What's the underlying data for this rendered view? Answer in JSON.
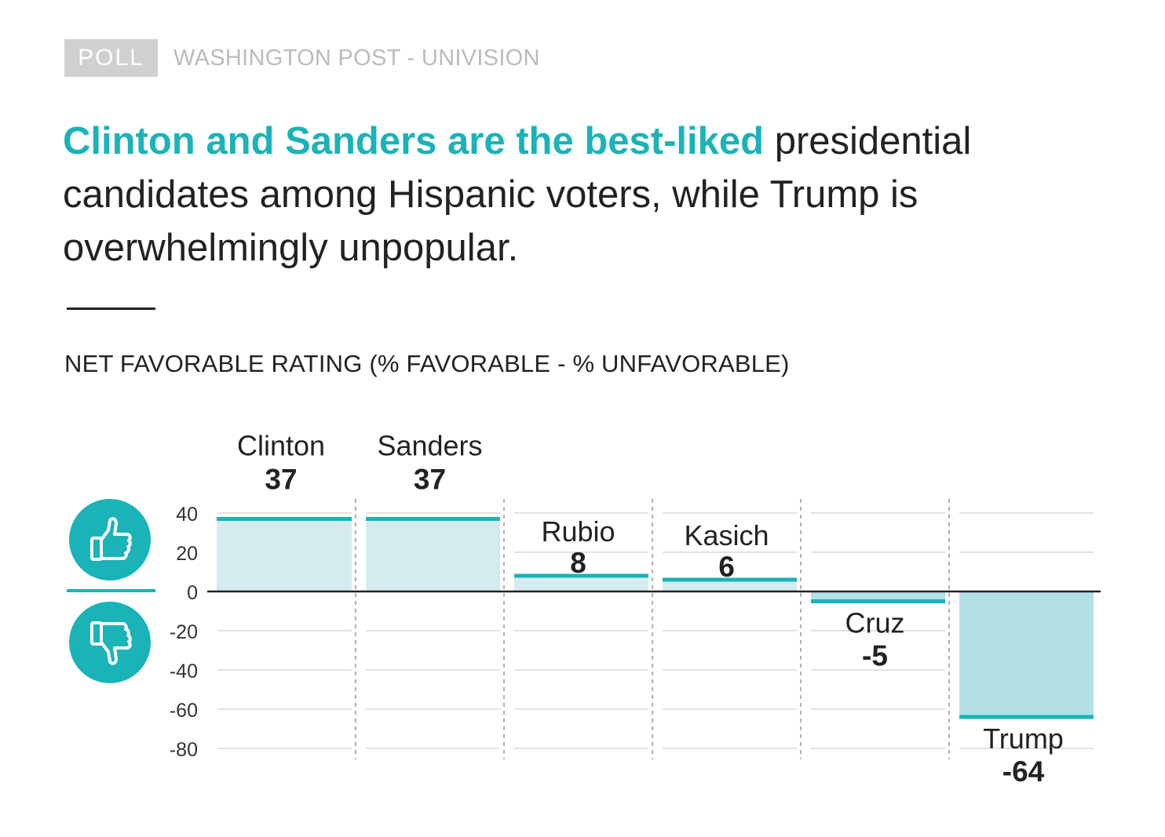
{
  "kicker": {
    "badge": "POLL",
    "source": "WASHINGTON POST - UNIVISION"
  },
  "headline": {
    "highlight": "Clinton and Sanders are the best-liked",
    "rest": " presidential candidates among Hispanic voters, while Trump is overwhelmingly unpopular."
  },
  "icons": {
    "favorable": "thumbs-up-icon",
    "unfavorable": "thumbs-down-icon"
  },
  "colors": {
    "accent": "#19b3b8",
    "positive_fill": "#d4ecf0",
    "negative_fill": "#b3e0e6",
    "grid": "#d9d9d9",
    "divider": "#999999"
  },
  "chart_data": {
    "type": "bar",
    "title": "NET FAVORABLE RATING (% FAVORABLE - % UNFAVORABLE)",
    "categories": [
      "Clinton",
      "Sanders",
      "Rubio",
      "Kasich",
      "Cruz",
      "Trump"
    ],
    "values": [
      37,
      37,
      8,
      6,
      -5,
      -64
    ],
    "value_labels": [
      "37",
      "37",
      "8",
      "6",
      "-5",
      "-64"
    ],
    "ylim": [
      -80,
      40
    ],
    "yticks": [
      40,
      20,
      0,
      -20,
      -40,
      -60,
      -80
    ],
    "ytick_labels": [
      "40",
      "20",
      "0",
      "-20",
      "-40",
      "-60",
      "-80"
    ],
    "grid": true,
    "legend": "none"
  }
}
